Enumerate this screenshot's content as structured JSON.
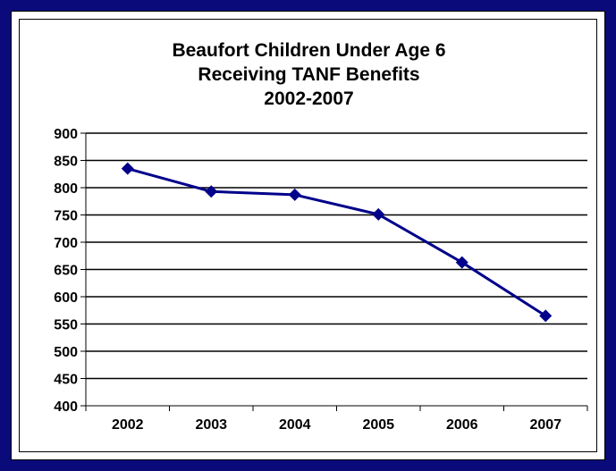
{
  "chart_data": {
    "type": "line",
    "title": [
      "Beaufort Children Under Age 6",
      "Receiving TANF Benefits",
      "2002-2007"
    ],
    "xlabel": "",
    "ylabel": "",
    "categories": [
      "2002",
      "2003",
      "2004",
      "2005",
      "2006",
      "2007"
    ],
    "series": [
      {
        "values": [
          835,
          793,
          787,
          751,
          663,
          565
        ]
      }
    ],
    "ylim": [
      400,
      900
    ],
    "ytick_step": 50,
    "yticks": [
      "400",
      "450",
      "500",
      "550",
      "600",
      "650",
      "700",
      "750",
      "800",
      "850",
      "900"
    ],
    "grid": "horizontal",
    "legend": "none",
    "marker": "diamond",
    "colors": {
      "series": "#00008b",
      "frame": "#0a0a7a",
      "grid": "#000000"
    }
  }
}
